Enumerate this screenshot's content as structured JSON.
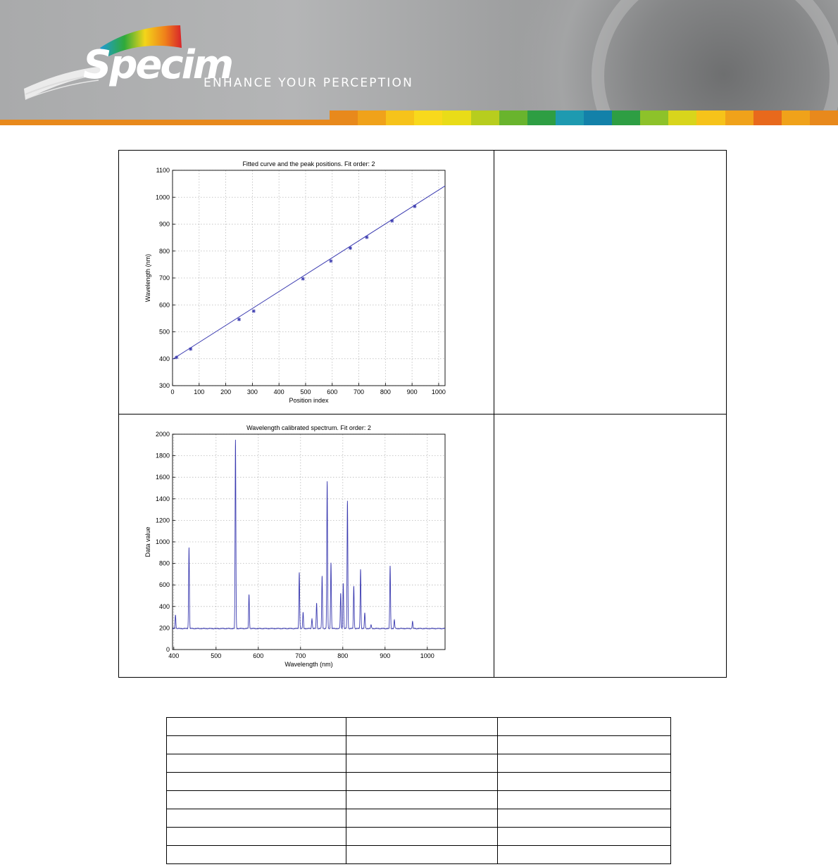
{
  "header": {
    "brand": "Specim",
    "tagline": "ENHANCE YOUR PERCEPTION",
    "strip_colors": [
      "#e8891c",
      "#f0a21a",
      "#f6c31a",
      "#f8d91c",
      "#e9dc18",
      "#b7cd1e",
      "#69b42d",
      "#2e9e43",
      "#1e9ab0",
      "#1381a9",
      "#2e9e43",
      "#8dc22a",
      "#d8d51c",
      "#f6c31a",
      "#f0a21a",
      "#e8691c",
      "#f0a21a",
      "#e8891c"
    ]
  },
  "charts": {
    "chart_data": [
      {
        "type": "line",
        "title": "Fitted curve and the peak positions. Fit order: 2",
        "xlabel": "Position index",
        "ylabel": "Wavelength (nm)",
        "xlim": [
          0,
          1024
        ],
        "ylim": [
          300,
          1100
        ],
        "xticks": [
          0,
          100,
          200,
          300,
          400,
          500,
          600,
          700,
          800,
          900,
          1000
        ],
        "yticks": [
          300,
          400,
          500,
          600,
          700,
          800,
          900,
          1000,
          1100
        ],
        "grid": true,
        "series": [
          {
            "style": "line",
            "x": [
              0,
              1024
            ],
            "y": [
              398,
              1042
            ]
          },
          {
            "style": "markers",
            "x": [
              15,
              68,
              250,
              305,
              490,
              595,
              668,
              730,
              825,
              910
            ],
            "y": [
              405,
              436,
              546,
              577,
              697,
              763,
              811,
              851,
              912,
              966
            ]
          }
        ]
      },
      {
        "type": "line",
        "title": "Wavelength calibrated spectrum. Fit order: 2",
        "xlabel": "Wavelength (nm)",
        "ylabel": "Data value",
        "xlim": [
          397,
          1042
        ],
        "ylim": [
          0,
          2000
        ],
        "xticks": [
          400,
          500,
          600,
          700,
          800,
          900,
          1000
        ],
        "yticks": [
          0,
          200,
          400,
          600,
          800,
          1000,
          1200,
          1400,
          1600,
          1800,
          2000
        ],
        "grid": true,
        "baseline": 195,
        "peaks": [
          {
            "x": 404,
            "y": 320
          },
          {
            "x": 436,
            "y": 950
          },
          {
            "x": 546,
            "y": 1950
          },
          {
            "x": 578,
            "y": 510
          },
          {
            "x": 697,
            "y": 720
          },
          {
            "x": 706,
            "y": 345
          },
          {
            "x": 727,
            "y": 290
          },
          {
            "x": 738,
            "y": 435
          },
          {
            "x": 751,
            "y": 680
          },
          {
            "x": 763,
            "y": 1560
          },
          {
            "x": 772,
            "y": 810
          },
          {
            "x": 795,
            "y": 520
          },
          {
            "x": 801,
            "y": 620
          },
          {
            "x": 811,
            "y": 1380
          },
          {
            "x": 826,
            "y": 590
          },
          {
            "x": 842,
            "y": 750
          },
          {
            "x": 852,
            "y": 340
          },
          {
            "x": 867,
            "y": 230
          },
          {
            "x": 912,
            "y": 780
          },
          {
            "x": 922,
            "y": 275
          },
          {
            "x": 965,
            "y": 260
          }
        ]
      }
    ]
  },
  "table": {
    "rows": 8,
    "cols": 3
  }
}
